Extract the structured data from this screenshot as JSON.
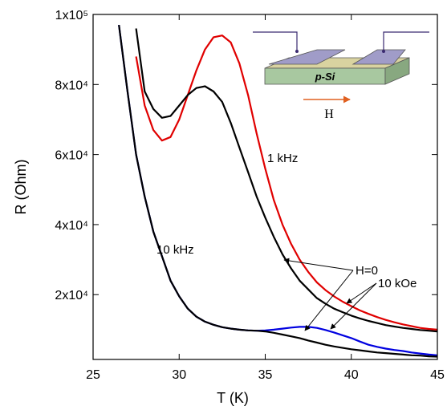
{
  "chart_data": {
    "type": "line",
    "xlabel": "T (K)",
    "ylabel": "R (Ohm)",
    "x": [
      26,
      26.5,
      27,
      27.5,
      28,
      28.5,
      29,
      29.5,
      30,
      30.5,
      31,
      31.5,
      32,
      32.5,
      33,
      33.5,
      34,
      34.5,
      35,
      35.5,
      36,
      36.5,
      37,
      37.5,
      38,
      38.5,
      39,
      39.5,
      40,
      40.5,
      41,
      41.5,
      42,
      42.5,
      43,
      43.5,
      44,
      44.5,
      45
    ],
    "series": [
      {
        "color": "#e00000",
        "values": [
          null,
          null,
          null,
          88000,
          74000,
          67000,
          64000,
          65000,
          70000,
          77000,
          84000,
          90000,
          93500,
          94000,
          92000,
          86000,
          77000,
          66000,
          56000,
          47000,
          40000,
          34500,
          30000,
          26500,
          23500,
          21300,
          19500,
          18000,
          16700,
          15500,
          14500,
          13600,
          12800,
          12100,
          11500,
          11000,
          10500,
          10200,
          10000
        ]
      },
      {
        "color": "#000000",
        "values": [
          null,
          null,
          null,
          96000,
          78000,
          73000,
          70500,
          71000,
          74000,
          77000,
          79000,
          79500,
          78000,
          75000,
          69000,
          62000,
          55000,
          48000,
          42000,
          36500,
          31500,
          27500,
          24000,
          21500,
          19000,
          17400,
          16000,
          15000,
          14000,
          13200,
          12500,
          11900,
          11300,
          10900,
          10500,
          10200,
          9900,
          9700,
          9500
        ]
      },
      {
        "color": "#0000e0",
        "values": [
          null,
          97000,
          78000,
          60000,
          48000,
          38000,
          31000,
          24000,
          19500,
          16000,
          13700,
          12300,
          11400,
          10700,
          10300,
          10000,
          9800,
          9700,
          9800,
          10000,
          10300,
          10600,
          10800,
          10800,
          10500,
          9900,
          9200,
          8400,
          7600,
          6600,
          5700,
          5100,
          4600,
          4200,
          3900,
          3500,
          3200,
          2900,
          2700
        ]
      },
      {
        "color": "#000000",
        "values": [
          null,
          97000,
          78000,
          60000,
          48000,
          38000,
          31000,
          24000,
          19500,
          16000,
          13700,
          12300,
          11400,
          10700,
          10300,
          10000,
          9800,
          9700,
          9500,
          9100,
          8600,
          8100,
          7600,
          6900,
          6300,
          5700,
          5200,
          4800,
          4400,
          4100,
          3800,
          3500,
          3300,
          3100,
          2900,
          2700,
          2600,
          2400,
          2300
        ]
      }
    ],
    "xlim": [
      25,
      45
    ],
    "xticks": [
      25,
      30,
      35,
      40,
      45
    ],
    "ylim": [
      1500,
      100000
    ],
    "yticks": [
      {
        "value": 20000,
        "label": "2x10⁴"
      },
      {
        "value": 40000,
        "label": "4x10⁴"
      },
      {
        "value": 60000,
        "label": "6x10⁴"
      },
      {
        "value": 80000,
        "label": "8x10⁴"
      },
      {
        "value": 100000,
        "label": "1x10⁵"
      }
    ],
    "annotations": [
      "1 kHz",
      "10 kHz",
      "H=0",
      "10 kOe",
      "p-Si",
      "H"
    ]
  }
}
